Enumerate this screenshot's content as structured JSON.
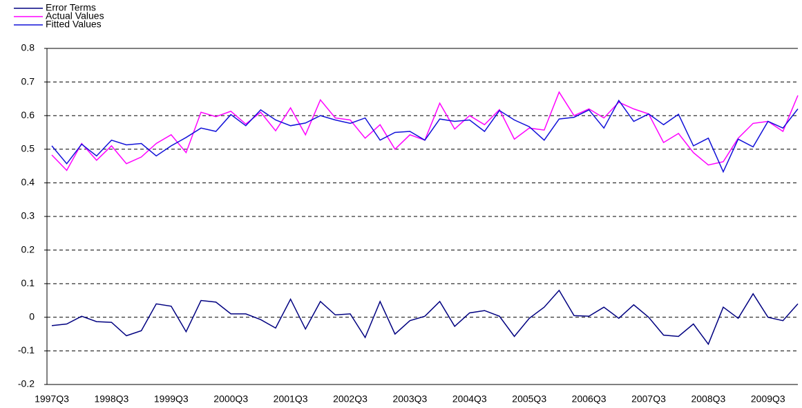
{
  "chart_data": {
    "type": "line",
    "categories": [
      "1997Q3",
      null,
      null,
      null,
      "1998Q3",
      null,
      null,
      null,
      "1999Q3",
      null,
      null,
      null,
      "2000Q3",
      null,
      null,
      null,
      "2001Q3",
      null,
      null,
      null,
      "2002Q3",
      null,
      null,
      null,
      "2003Q3",
      null,
      null,
      null,
      "2004Q3",
      null,
      null,
      null,
      "2005Q3",
      null,
      null,
      null,
      "2006Q3",
      null,
      null,
      null,
      "2007Q3",
      null,
      null,
      null,
      "2008Q3",
      null,
      null,
      null,
      "2009Q3",
      null,
      null
    ],
    "series": [
      {
        "name": "Error Terms",
        "color": "#000080",
        "values": [
          -0.025,
          -0.02,
          0.003,
          -0.013,
          -0.015,
          -0.055,
          -0.04,
          0.04,
          0.033,
          -0.043,
          0.05,
          0.045,
          0.01,
          0.01,
          -0.007,
          -0.032,
          0.054,
          -0.035,
          0.047,
          0.007,
          0.01,
          -0.06,
          0.047,
          -0.05,
          -0.01,
          0.003,
          0.047,
          -0.027,
          0.013,
          0.02,
          0.003,
          -0.057,
          -0.003,
          0.03,
          0.08,
          0.005,
          0.003,
          0.03,
          -0.003,
          0.037,
          0.0,
          -0.053,
          -0.057,
          -0.02,
          -0.08,
          0.03,
          -0.003,
          0.07,
          0.0,
          -0.01,
          0.04
        ]
      },
      {
        "name": "Actual Values",
        "color": "#ff00ff",
        "values": [
          0.483,
          0.437,
          0.517,
          0.467,
          0.51,
          0.457,
          0.477,
          0.517,
          0.543,
          0.49,
          0.61,
          0.597,
          0.613,
          0.575,
          0.61,
          0.555,
          0.623,
          0.543,
          0.647,
          0.593,
          0.587,
          0.533,
          0.573,
          0.5,
          0.543,
          0.527,
          0.637,
          0.56,
          0.6,
          0.573,
          0.618,
          0.53,
          0.563,
          0.557,
          0.67,
          0.6,
          0.62,
          0.593,
          0.64,
          0.62,
          0.605,
          0.52,
          0.547,
          0.49,
          0.453,
          0.463,
          0.533,
          0.577,
          0.583,
          0.553,
          0.66
        ]
      },
      {
        "name": "Fitted Values",
        "color": "#1010d8",
        "values": [
          0.51,
          0.457,
          0.515,
          0.48,
          0.527,
          0.513,
          0.517,
          0.48,
          0.51,
          0.535,
          0.563,
          0.553,
          0.603,
          0.57,
          0.617,
          0.587,
          0.57,
          0.578,
          0.6,
          0.587,
          0.577,
          0.593,
          0.527,
          0.55,
          0.553,
          0.527,
          0.59,
          0.583,
          0.587,
          0.553,
          0.615,
          0.587,
          0.567,
          0.527,
          0.59,
          0.595,
          0.617,
          0.563,
          0.645,
          0.583,
          0.605,
          0.573,
          0.604,
          0.51,
          0.533,
          0.433,
          0.53,
          0.507,
          0.583,
          0.563,
          0.62
        ]
      }
    ],
    "ylim": [
      -0.2,
      0.8
    ],
    "yticks": [
      -0.2,
      -0.1,
      0,
      0.1,
      0.2,
      0.3,
      0.4,
      0.5,
      0.6,
      0.7,
      0.8
    ],
    "grid": true
  }
}
